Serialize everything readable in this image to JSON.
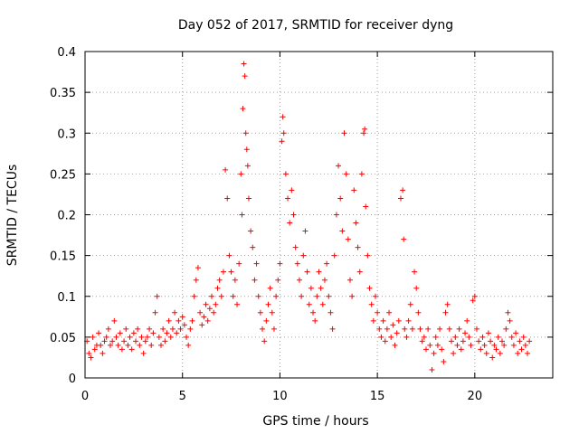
{
  "chart_data": {
    "type": "scatter",
    "title": "Day 052 of 2017, SRMTID for receiver dyng",
    "xlabel": "GPS time / hours",
    "ylabel": "SRMTID / TECUs",
    "xlim": [
      0,
      24
    ],
    "ylim": [
      0,
      0.4
    ],
    "x_ticks": [
      0,
      5,
      10,
      15,
      20
    ],
    "x_tick_labels": [
      "0",
      "5",
      "10",
      "15",
      "20"
    ],
    "y_ticks": [
      0,
      0.05,
      0.1,
      0.15,
      0.2,
      0.25,
      0.3,
      0.35,
      0.4
    ],
    "y_tick_labels": [
      "0",
      "0.05",
      "0.1",
      "0.15",
      "0.2",
      "0.25",
      "0.3",
      "0.35",
      "0.4"
    ],
    "grid": true,
    "marker": "+",
    "marker_color": "#ff0000",
    "series": [
      {
        "name": "SRMTID",
        "points": [
          [
            0.1,
            0.045
          ],
          [
            0.2,
            0.03
          ],
          [
            0.3,
            0.025
          ],
          [
            0.4,
            0.05
          ],
          [
            0.5,
            0.035
          ],
          [
            0.6,
            0.04
          ],
          [
            0.7,
            0.055
          ],
          [
            0.8,
            0.04
          ],
          [
            0.9,
            0.03
          ],
          [
            1.0,
            0.045
          ],
          [
            1.1,
            0.05
          ],
          [
            1.2,
            0.06
          ],
          [
            1.3,
            0.04
          ],
          [
            1.4,
            0.045
          ],
          [
            1.5,
            0.07
          ],
          [
            1.6,
            0.05
          ],
          [
            1.7,
            0.04
          ],
          [
            1.8,
            0.055
          ],
          [
            1.9,
            0.035
          ],
          [
            2.0,
            0.045
          ],
          [
            2.1,
            0.06
          ],
          [
            2.2,
            0.04
          ],
          [
            2.3,
            0.05
          ],
          [
            2.4,
            0.035
          ],
          [
            2.5,
            0.055
          ],
          [
            2.6,
            0.045
          ],
          [
            2.7,
            0.06
          ],
          [
            2.8,
            0.04
          ],
          [
            2.9,
            0.05
          ],
          [
            3.0,
            0.03
          ],
          [
            3.1,
            0.045
          ],
          [
            3.2,
            0.05
          ],
          [
            3.3,
            0.06
          ],
          [
            3.4,
            0.04
          ],
          [
            3.5,
            0.055
          ],
          [
            3.6,
            0.08
          ],
          [
            3.7,
            0.1
          ],
          [
            3.8,
            0.05
          ],
          [
            3.9,
            0.04
          ],
          [
            4.0,
            0.06
          ],
          [
            4.1,
            0.045
          ],
          [
            4.2,
            0.055
          ],
          [
            4.3,
            0.07
          ],
          [
            4.4,
            0.05
          ],
          [
            4.5,
            0.06
          ],
          [
            4.6,
            0.08
          ],
          [
            4.7,
            0.055
          ],
          [
            4.8,
            0.07
          ],
          [
            4.9,
            0.06
          ],
          [
            5.0,
            0.075
          ],
          [
            5.1,
            0.065
          ],
          [
            5.2,
            0.05
          ],
          [
            5.3,
            0.04
          ],
          [
            5.4,
            0.06
          ],
          [
            5.5,
            0.07
          ],
          [
            5.6,
            0.1
          ],
          [
            5.7,
            0.12
          ],
          [
            5.8,
            0.135
          ],
          [
            5.9,
            0.08
          ],
          [
            6.0,
            0.065
          ],
          [
            6.1,
            0.075
          ],
          [
            6.2,
            0.09
          ],
          [
            6.3,
            0.07
          ],
          [
            6.4,
            0.085
          ],
          [
            6.5,
            0.1
          ],
          [
            6.6,
            0.08
          ],
          [
            6.7,
            0.09
          ],
          [
            6.8,
            0.11
          ],
          [
            6.9,
            0.12
          ],
          [
            7.0,
            0.1
          ],
          [
            7.1,
            0.13
          ],
          [
            7.2,
            0.255
          ],
          [
            7.3,
            0.22
          ],
          [
            7.4,
            0.15
          ],
          [
            7.5,
            0.13
          ],
          [
            7.6,
            0.1
          ],
          [
            7.7,
            0.12
          ],
          [
            7.8,
            0.09
          ],
          [
            7.9,
            0.14
          ],
          [
            8.0,
            0.25
          ],
          [
            8.05,
            0.2
          ],
          [
            8.1,
            0.33
          ],
          [
            8.15,
            0.385
          ],
          [
            8.2,
            0.37
          ],
          [
            8.25,
            0.3
          ],
          [
            8.3,
            0.28
          ],
          [
            8.35,
            0.26
          ],
          [
            8.4,
            0.22
          ],
          [
            8.5,
            0.18
          ],
          [
            8.6,
            0.16
          ],
          [
            8.7,
            0.12
          ],
          [
            8.8,
            0.14
          ],
          [
            8.9,
            0.1
          ],
          [
            9.0,
            0.08
          ],
          [
            9.1,
            0.06
          ],
          [
            9.2,
            0.045
          ],
          [
            9.3,
            0.07
          ],
          [
            9.4,
            0.09
          ],
          [
            9.5,
            0.11
          ],
          [
            9.6,
            0.08
          ],
          [
            9.7,
            0.06
          ],
          [
            9.8,
            0.1
          ],
          [
            9.9,
            0.12
          ],
          [
            10.0,
            0.14
          ],
          [
            10.1,
            0.29
          ],
          [
            10.15,
            0.32
          ],
          [
            10.2,
            0.3
          ],
          [
            10.3,
            0.25
          ],
          [
            10.4,
            0.22
          ],
          [
            10.5,
            0.19
          ],
          [
            10.6,
            0.23
          ],
          [
            10.7,
            0.2
          ],
          [
            10.8,
            0.16
          ],
          [
            10.9,
            0.14
          ],
          [
            11.0,
            0.12
          ],
          [
            11.1,
            0.1
          ],
          [
            11.2,
            0.15
          ],
          [
            11.3,
            0.18
          ],
          [
            11.4,
            0.13
          ],
          [
            11.5,
            0.09
          ],
          [
            11.6,
            0.11
          ],
          [
            11.7,
            0.08
          ],
          [
            11.8,
            0.07
          ],
          [
            11.9,
            0.1
          ],
          [
            12.0,
            0.13
          ],
          [
            12.1,
            0.11
          ],
          [
            12.2,
            0.09
          ],
          [
            12.3,
            0.12
          ],
          [
            12.4,
            0.14
          ],
          [
            12.5,
            0.1
          ],
          [
            12.6,
            0.08
          ],
          [
            12.7,
            0.06
          ],
          [
            12.8,
            0.15
          ],
          [
            12.9,
            0.2
          ],
          [
            13.0,
            0.26
          ],
          [
            13.1,
            0.22
          ],
          [
            13.2,
            0.18
          ],
          [
            13.3,
            0.3
          ],
          [
            13.4,
            0.25
          ],
          [
            13.5,
            0.17
          ],
          [
            13.6,
            0.12
          ],
          [
            13.7,
            0.1
          ],
          [
            13.8,
            0.23
          ],
          [
            13.9,
            0.19
          ],
          [
            14.0,
            0.16
          ],
          [
            14.1,
            0.13
          ],
          [
            14.2,
            0.25
          ],
          [
            14.3,
            0.3
          ],
          [
            14.35,
            0.305
          ],
          [
            14.4,
            0.21
          ],
          [
            14.5,
            0.15
          ],
          [
            14.6,
            0.11
          ],
          [
            14.7,
            0.09
          ],
          [
            14.8,
            0.07
          ],
          [
            14.9,
            0.1
          ],
          [
            15.0,
            0.08
          ],
          [
            15.1,
            0.06
          ],
          [
            15.2,
            0.05
          ],
          [
            15.3,
            0.07
          ],
          [
            15.4,
            0.045
          ],
          [
            15.5,
            0.06
          ],
          [
            15.6,
            0.08
          ],
          [
            15.7,
            0.05
          ],
          [
            15.8,
            0.065
          ],
          [
            15.9,
            0.04
          ],
          [
            16.0,
            0.055
          ],
          [
            16.1,
            0.07
          ],
          [
            16.2,
            0.22
          ],
          [
            16.3,
            0.23
          ],
          [
            16.35,
            0.17
          ],
          [
            16.4,
            0.06
          ],
          [
            16.5,
            0.05
          ],
          [
            16.6,
            0.07
          ],
          [
            16.7,
            0.09
          ],
          [
            16.8,
            0.06
          ],
          [
            16.9,
            0.13
          ],
          [
            17.0,
            0.11
          ],
          [
            17.1,
            0.08
          ],
          [
            17.2,
            0.06
          ],
          [
            17.3,
            0.045
          ],
          [
            17.4,
            0.05
          ],
          [
            17.5,
            0.035
          ],
          [
            17.6,
            0.06
          ],
          [
            17.7,
            0.04
          ],
          [
            17.8,
            0.01
          ],
          [
            17.9,
            0.03
          ],
          [
            18.0,
            0.05
          ],
          [
            18.1,
            0.04
          ],
          [
            18.2,
            0.06
          ],
          [
            18.3,
            0.035
          ],
          [
            18.4,
            0.02
          ],
          [
            18.5,
            0.08
          ],
          [
            18.6,
            0.09
          ],
          [
            18.7,
            0.06
          ],
          [
            18.8,
            0.045
          ],
          [
            18.9,
            0.03
          ],
          [
            19.0,
            0.05
          ],
          [
            19.1,
            0.04
          ],
          [
            19.2,
            0.06
          ],
          [
            19.3,
            0.035
          ],
          [
            19.4,
            0.045
          ],
          [
            19.5,
            0.055
          ],
          [
            19.6,
            0.07
          ],
          [
            19.7,
            0.05
          ],
          [
            19.8,
            0.04
          ],
          [
            19.9,
            0.095
          ],
          [
            20.0,
            0.1
          ],
          [
            20.1,
            0.06
          ],
          [
            20.2,
            0.045
          ],
          [
            20.3,
            0.035
          ],
          [
            20.4,
            0.05
          ],
          [
            20.5,
            0.04
          ],
          [
            20.6,
            0.03
          ],
          [
            20.7,
            0.055
          ],
          [
            20.8,
            0.045
          ],
          [
            20.9,
            0.025
          ],
          [
            21.0,
            0.04
          ],
          [
            21.1,
            0.035
          ],
          [
            21.2,
            0.05
          ],
          [
            21.3,
            0.03
          ],
          [
            21.4,
            0.045
          ],
          [
            21.5,
            0.04
          ],
          [
            21.6,
            0.06
          ],
          [
            21.7,
            0.08
          ],
          [
            21.8,
            0.07
          ],
          [
            21.9,
            0.05
          ],
          [
            22.0,
            0.04
          ],
          [
            22.1,
            0.055
          ],
          [
            22.2,
            0.03
          ],
          [
            22.3,
            0.045
          ],
          [
            22.4,
            0.035
          ],
          [
            22.5,
            0.05
          ],
          [
            22.6,
            0.04
          ],
          [
            22.7,
            0.03
          ],
          [
            22.8,
            0.045
          ]
        ]
      }
    ]
  }
}
